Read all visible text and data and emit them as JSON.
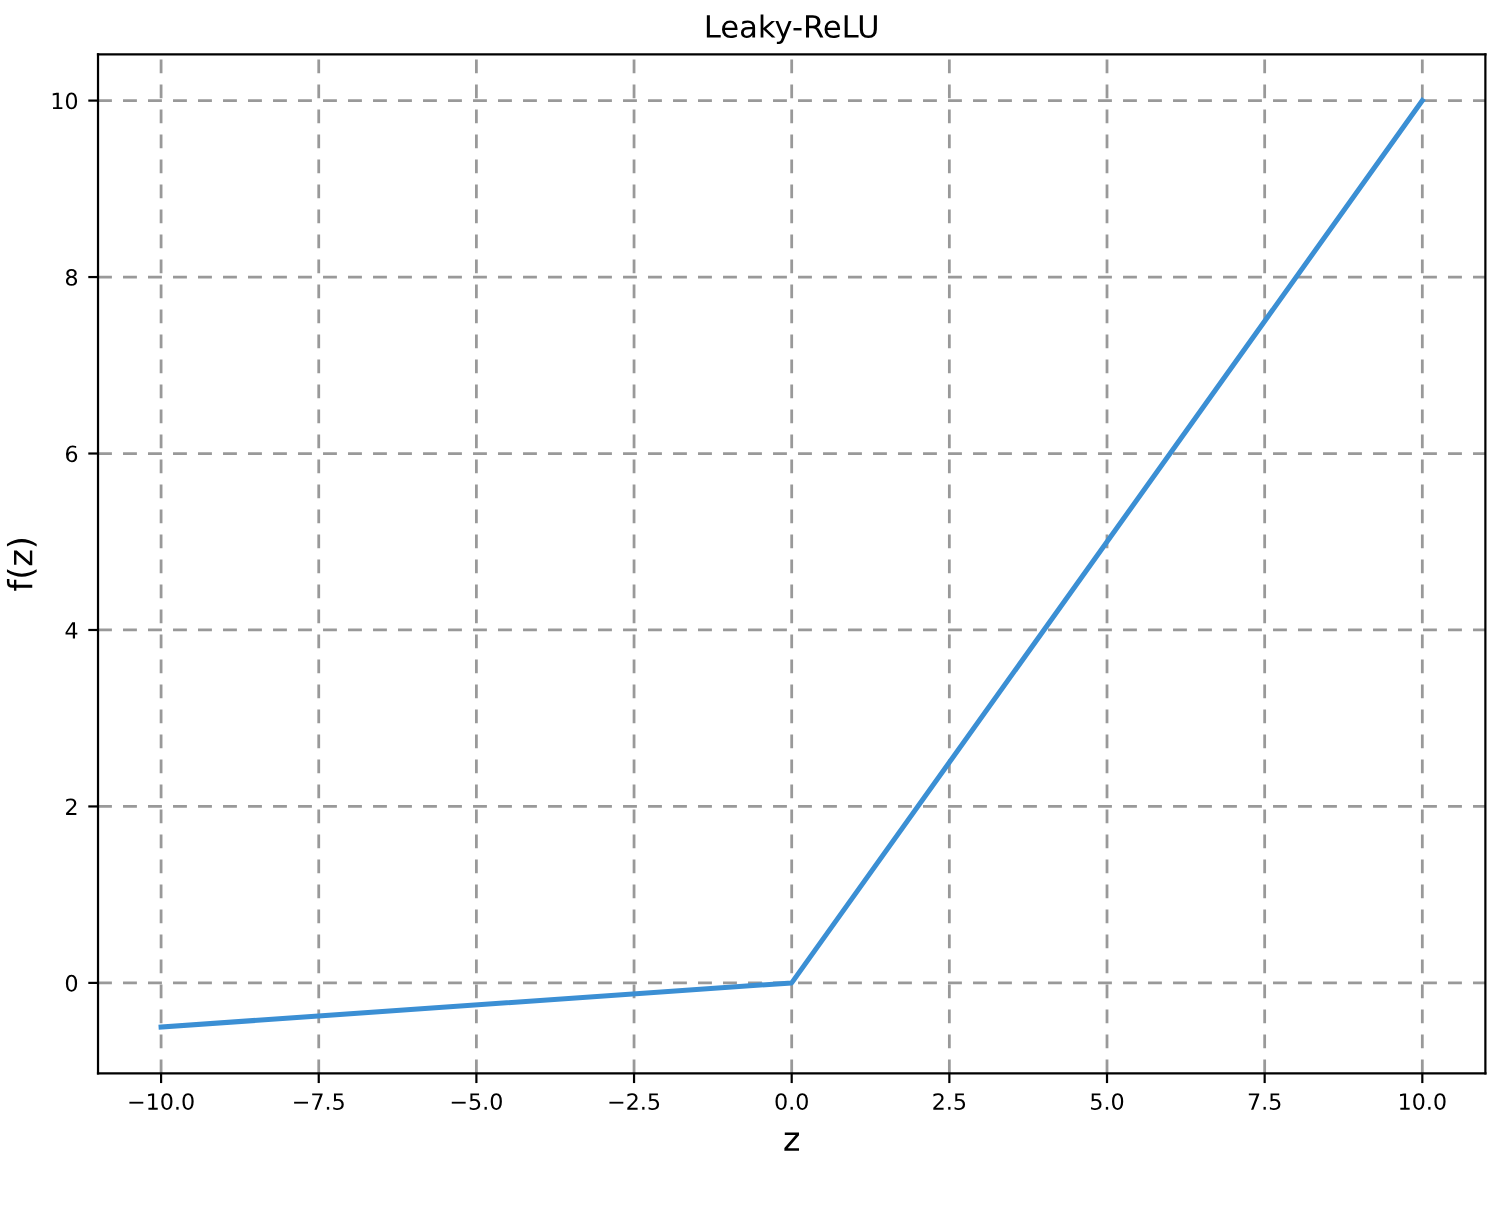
{
  "chart_data": {
    "type": "line",
    "title": "Leaky-ReLU",
    "xlabel": "z",
    "ylabel": "f(z)",
    "x": [
      -10,
      0,
      10
    ],
    "series": [
      {
        "color": "#3b8fd4",
        "values": [
          -0.5,
          0,
          10
        ]
      }
    ],
    "xlim": [
      -11,
      11
    ],
    "xticks": [
      {
        "value": -10,
        "label": "−10.0"
      },
      {
        "value": -7.5,
        "label": "−7.5"
      },
      {
        "value": -5,
        "label": "−5.0"
      },
      {
        "value": -2.5,
        "label": "−2.5"
      },
      {
        "value": 0,
        "label": "0.0"
      },
      {
        "value": 2.5,
        "label": "2.5"
      },
      {
        "value": 5,
        "label": "5.0"
      },
      {
        "value": 7.5,
        "label": "7.5"
      },
      {
        "value": 10,
        "label": "10.0"
      }
    ],
    "ylim": [
      -1.025,
      10.525
    ],
    "yticks": [
      0,
      2,
      4,
      6,
      8,
      10
    ],
    "grid": true,
    "line_style": "solid",
    "marker": "none"
  }
}
